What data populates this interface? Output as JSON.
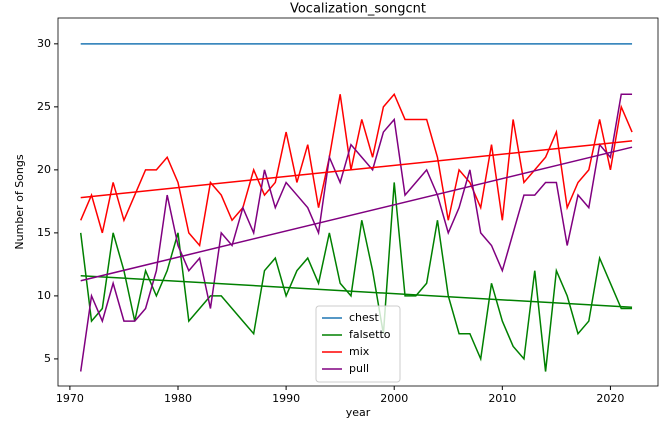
{
  "chart_data": {
    "type": "line",
    "title": "Vocalization_songcnt",
    "xlabel": "year",
    "ylabel": "Number of Songs",
    "x": [
      1971,
      1972,
      1973,
      1974,
      1975,
      1976,
      1977,
      1978,
      1979,
      1980,
      1981,
      1982,
      1983,
      1984,
      1985,
      1986,
      1987,
      1988,
      1989,
      1990,
      1991,
      1992,
      1993,
      1994,
      1995,
      1996,
      1997,
      1998,
      1999,
      2000,
      2001,
      2002,
      2003,
      2004,
      2005,
      2006,
      2007,
      2008,
      2009,
      2010,
      2011,
      2012,
      2013,
      2014,
      2015,
      2016,
      2017,
      2018,
      2019,
      2020,
      2021,
      2022
    ],
    "series": [
      {
        "name": "chest",
        "color": "#1f77b4",
        "values": [
          30,
          30,
          30,
          30,
          30,
          30,
          30,
          30,
          30,
          30,
          30,
          30,
          30,
          30,
          30,
          30,
          30,
          30,
          30,
          30,
          30,
          30,
          30,
          30,
          30,
          30,
          30,
          30,
          30,
          30,
          30,
          30,
          30,
          30,
          30,
          30,
          30,
          30,
          30,
          30,
          30,
          30,
          30,
          30,
          30,
          30,
          30,
          30,
          30,
          30,
          30,
          30
        ]
      },
      {
        "name": "falsetto",
        "color": "#008000",
        "values": [
          15,
          8,
          9,
          15,
          12,
          8,
          12,
          10,
          12,
          15,
          8,
          9,
          10,
          10,
          9,
          8,
          7,
          12,
          13,
          10,
          12,
          13,
          11,
          15,
          11,
          10,
          16,
          12,
          7,
          19,
          10,
          10,
          11,
          16,
          10,
          7,
          7,
          5,
          11,
          8,
          6,
          5,
          12,
          4,
          12,
          10,
          7,
          8,
          13,
          11,
          9,
          9
        ]
      },
      {
        "name": "mix",
        "color": "#ff0000",
        "values": [
          16,
          18,
          15,
          19,
          16,
          18,
          20,
          20,
          21,
          19,
          15,
          14,
          19,
          18,
          16,
          17,
          20,
          18,
          19,
          23,
          19,
          22,
          17,
          21,
          26,
          20,
          24,
          21,
          25,
          26,
          24,
          24,
          24,
          21,
          16,
          20,
          19,
          17,
          22,
          16,
          24,
          19,
          20,
          21,
          23,
          17,
          19,
          20,
          24,
          20,
          25,
          23
        ]
      },
      {
        "name": "pull",
        "color": "#800080",
        "values": [
          4,
          10,
          8,
          11,
          8,
          8,
          9,
          12,
          18,
          14,
          12,
          13,
          9,
          15,
          14,
          17,
          15,
          20,
          17,
          19,
          18,
          17,
          15,
          21,
          19,
          22,
          21,
          20,
          23,
          24,
          18,
          19,
          20,
          18,
          15,
          17,
          20,
          15,
          14,
          12,
          15,
          18,
          18,
          19,
          19,
          14,
          18,
          17,
          22,
          21,
          26,
          26
        ]
      }
    ],
    "trends": [
      {
        "color": "#008000",
        "x": [
          1971,
          2022
        ],
        "values": [
          11.6,
          9.1
        ]
      },
      {
        "color": "#ff0000",
        "x": [
          1971,
          2022
        ],
        "values": [
          17.8,
          22.3
        ]
      },
      {
        "color": "#800080",
        "x": [
          1971,
          2022
        ],
        "values": [
          11.2,
          21.8
        ]
      }
    ],
    "xlim": [
      1968.9,
      2024.4
    ],
    "ylim": [
      2.85,
      32.05
    ],
    "xticks": [
      1970,
      1980,
      1990,
      2000,
      2010,
      2020
    ],
    "yticks": [
      5,
      10,
      15,
      20,
      25,
      30
    ],
    "legend": "lower center"
  }
}
